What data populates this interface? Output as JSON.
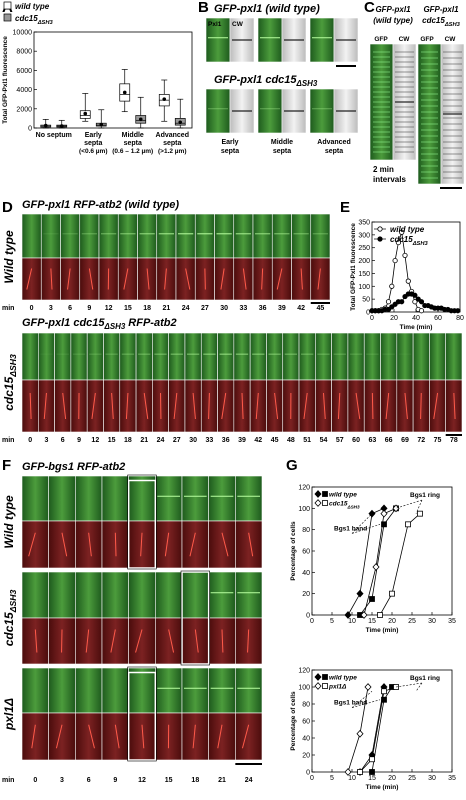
{
  "panel_letters": [
    "A",
    "B",
    "C",
    "D",
    "E",
    "F",
    "G"
  ],
  "chart_data": [
    {
      "type": "box",
      "y_label": "Total GFP-Pxl1 fluorescence",
      "categories": [
        [
          "No septum"
        ],
        [
          "Early",
          "septa",
          "(<0.6 µm)"
        ],
        [
          "Middle",
          "septa",
          "(0.6 – 1.2 µm)"
        ],
        [
          "Advanced",
          "septa",
          "(>1.2 µm)"
        ]
      ],
      "ylim": [
        0,
        10000
      ],
      "yticks": [
        0,
        2000,
        4000,
        6000,
        8000,
        10000
      ],
      "series": [
        {
          "name": [
            "wild type"
          ],
          "color": "#ffffff",
          "whisker_low": [
            0,
            700,
            1700,
            700
          ],
          "q1": [
            100,
            1000,
            2800,
            2300
          ],
          "median": [
            200,
            1300,
            3500,
            2900
          ],
          "q3": [
            300,
            1800,
            4600,
            3500
          ],
          "whisker_high": [
            900,
            3600,
            6100,
            5000
          ],
          "mean": [
            250,
            1500,
            3700,
            3000
          ]
        },
        {
          "name": [
            "cdc15",
            "ΔSH3"
          ],
          "color": "#999999",
          "whisker_low": [
            0,
            0,
            0,
            0
          ],
          "q1": [
            100,
            200,
            500,
            300
          ],
          "median": [
            200,
            300,
            800,
            500
          ],
          "q3": [
            300,
            500,
            1300,
            1000
          ],
          "whisker_high": [
            800,
            1900,
            3200,
            3000
          ],
          "mean": [
            200,
            350,
            900,
            600
          ]
        }
      ]
    },
    {
      "type": "line",
      "y_label": "Total GFP-Pxl1 fluorescence",
      "x_label": "Time (min)",
      "xlim": [
        0,
        80
      ],
      "xticks": [
        0,
        20,
        40,
        60,
        80
      ],
      "ylim": [
        0,
        350
      ],
      "yticks": [
        0,
        50,
        100,
        150,
        200,
        250,
        300,
        350
      ],
      "series": [
        {
          "name": [
            "wild type"
          ],
          "marker": "circle",
          "filled": false,
          "color": "#000000",
          "x": [
            0,
            3,
            6,
            9,
            12,
            15,
            18,
            21,
            24,
            27,
            30,
            33,
            36,
            39,
            42,
            45
          ],
          "values": [
            5,
            5,
            5,
            10,
            15,
            40,
            100,
            200,
            270,
            310,
            220,
            120,
            80,
            40,
            10,
            5
          ]
        },
        {
          "name": [
            "cdc15",
            "ΔSH3"
          ],
          "marker": "circle",
          "filled": true,
          "color": "#000000",
          "x": [
            0,
            3,
            6,
            9,
            12,
            15,
            18,
            21,
            24,
            27,
            30,
            33,
            36,
            39,
            42,
            45,
            48,
            51,
            54,
            57,
            60,
            63,
            66,
            69,
            72,
            75,
            78
          ],
          "values": [
            5,
            5,
            5,
            5,
            10,
            10,
            20,
            30,
            40,
            40,
            60,
            70,
            70,
            65,
            50,
            40,
            25,
            25,
            20,
            15,
            15,
            15,
            10,
            10,
            5,
            5,
            5
          ]
        }
      ]
    },
    {
      "type": "line",
      "y_label": "Percentage of cells",
      "x_label": "Time (min)",
      "xlim": [
        0,
        35
      ],
      "xticks": [
        0,
        5,
        10,
        15,
        20,
        25,
        30,
        35
      ],
      "ylim": [
        0,
        120
      ],
      "yticks": [
        0,
        20,
        40,
        60,
        80,
        100,
        120
      ],
      "legend": [
        [
          "wild type"
        ],
        [
          "cdc15",
          "ΔSH3"
        ]
      ],
      "annotations": [
        "Bgs1 ring",
        "Bgs1 band"
      ],
      "series": [
        {
          "legend": 0,
          "marker": "diamond",
          "filled": true,
          "color": "#000000",
          "x": [
            9,
            12,
            15,
            18
          ],
          "values": [
            0,
            20,
            95,
            100
          ]
        },
        {
          "legend": 0,
          "marker": "square",
          "filled": true,
          "color": "#000000",
          "x": [
            12,
            15,
            18,
            21
          ],
          "values": [
            0,
            15,
            85,
            100
          ]
        },
        {
          "legend": 1,
          "marker": "diamond",
          "filled": false,
          "color": "#000000",
          "x": [
            13,
            16,
            18,
            21
          ],
          "values": [
            0,
            45,
            95,
            100
          ]
        },
        {
          "legend": 1,
          "marker": "square",
          "filled": false,
          "color": "#000000",
          "x": [
            17,
            20,
            24,
            27
          ],
          "values": [
            0,
            20,
            85,
            95
          ]
        }
      ]
    },
    {
      "type": "line",
      "y_label": "Percentage of cells",
      "x_label": "Time (min)",
      "xlim": [
        0,
        35
      ],
      "xticks": [
        0,
        5,
        10,
        15,
        20,
        25,
        30,
        35
      ],
      "ylim": [
        0,
        120
      ],
      "yticks": [
        0,
        20,
        40,
        60,
        80,
        100,
        120
      ],
      "legend": [
        [
          "wild type"
        ],
        [
          "pxl1Δ"
        ]
      ],
      "annotations": [
        "Bgs1 ring",
        "Bgs1 band"
      ],
      "series": [
        {
          "legend": 0,
          "marker": "diamond",
          "filled": true,
          "color": "#000000",
          "x": [
            12,
            15,
            18
          ],
          "values": [
            0,
            20,
            100
          ]
        },
        {
          "legend": 0,
          "marker": "square",
          "filled": true,
          "color": "#000000",
          "x": [
            15,
            18,
            20
          ],
          "values": [
            0,
            85,
            100
          ]
        },
        {
          "legend": 1,
          "marker": "diamond",
          "filled": false,
          "color": "#000000",
          "x": [
            9,
            12,
            14
          ],
          "values": [
            0,
            45,
            100
          ]
        },
        {
          "legend": 1,
          "marker": "square",
          "filled": false,
          "color": "#000000",
          "x": [
            12,
            15,
            18,
            21
          ],
          "values": [
            0,
            15,
            95,
            100
          ]
        }
      ]
    }
  ],
  "panel_b": {
    "title_wt": [
      "GFP-pxl1 (wild type)"
    ],
    "channels": [
      "Pxl1",
      "CW"
    ],
    "title_mut": [
      "GFP-pxl1 cdc15",
      "ΔSH3"
    ],
    "stages": [
      [
        "Early",
        "septa"
      ],
      [
        "Middle",
        "septa"
      ],
      [
        "Advanced",
        "septa"
      ]
    ]
  },
  "panel_c": {
    "columns": [
      [
        [
          "GFP-pxl1"
        ],
        [
          "(wild type)"
        ]
      ],
      [
        [
          "GFP-pxl1"
        ],
        [
          "cdc15",
          "ΔSH3"
        ]
      ]
    ],
    "channels": [
      "GFP",
      "CW",
      "GFP",
      "CW"
    ],
    "note": [
      "2 min",
      "intervals"
    ]
  },
  "panel_d": {
    "unit": "min",
    "rows": [
      {
        "title": [
          "GFP-pxl1 RFP-atb2 (wild type)"
        ],
        "label": [
          "Wild type"
        ],
        "times": [
          0,
          3,
          6,
          9,
          12,
          15,
          18,
          21,
          24,
          27,
          30,
          33,
          36,
          39,
          42,
          45
        ]
      },
      {
        "title": [
          "GFP-pxl1 cdc15",
          "ΔSH3",
          " RFP-atb2"
        ],
        "label": [
          "cdc15",
          "ΔSH3"
        ],
        "times": [
          0,
          3,
          6,
          9,
          12,
          15,
          18,
          21,
          24,
          27,
          30,
          33,
          36,
          39,
          42,
          45,
          48,
          51,
          54,
          57,
          60,
          63,
          66,
          69,
          72,
          75,
          78
        ]
      }
    ]
  },
  "panel_f": {
    "title": [
      "GFP-bgs1 RFP-atb2"
    ],
    "row_labels": [
      [
        "Wild type"
      ],
      [
        "cdc15",
        "ΔSH3"
      ],
      [
        "pxl1Δ"
      ]
    ],
    "unit": "min",
    "times": [
      0,
      3,
      6,
      9,
      12,
      15,
      18,
      21,
      24
    ]
  }
}
